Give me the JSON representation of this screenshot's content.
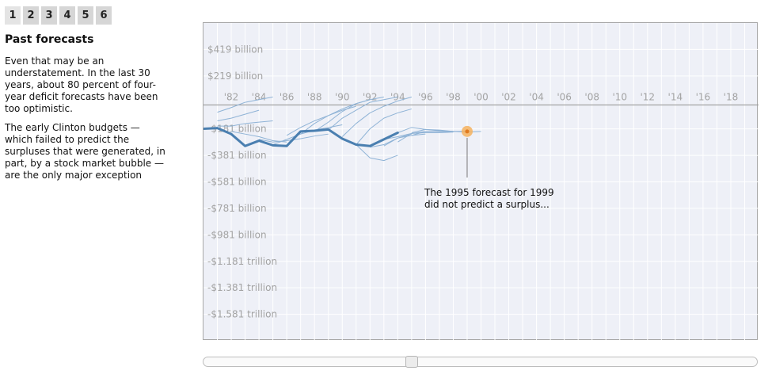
{
  "pager": {
    "pages": [
      "1",
      "2",
      "3",
      "4",
      "5",
      "6"
    ],
    "active": "1"
  },
  "sidebar": {
    "title": "Past forecasts",
    "paragraphs": [
      "Even that may be an understatement. In the last 30 years, about 80 percent of four-year deficit forecasts have been too optimistic.",
      "The early Clinton budgets — which failed to predict the surpluses that were generated, in part, by a stock market bubble — are the only major exception"
    ]
  },
  "annotation": {
    "line1": "The 1995 forecast for 1999",
    "line2": "did not predict a surplus..."
  },
  "slider": {
    "value_year": 1995
  },
  "colors": {
    "background": "#eef0f7",
    "grid": "#ffffff",
    "actual_line": "#4a7fb0",
    "forecast_lines": "#8fb3d6",
    "highlight": "#f5b25e",
    "zero_line": "#9a9a9a"
  },
  "chart_data": {
    "type": "line",
    "title": "",
    "xlabel": "",
    "ylabel": "",
    "x_tick_labels": [
      "'82",
      "'84",
      "'86",
      "'88",
      "'90",
      "'92",
      "'94",
      "'96",
      "'98",
      "'00",
      "'02",
      "'04",
      "'06",
      "'08",
      "'10",
      "'12",
      "'14",
      "'16",
      "'18"
    ],
    "y_tick_labels": [
      "$419 billion",
      "$219 billion",
      "-$181 billion",
      "-$381 billion",
      "-$581 billion",
      "-$781 billion",
      "-$981 billion",
      "-$1.181 trillion",
      "-$1.381 trillion",
      "-$1.581 trillion"
    ],
    "y_tick_values": [
      419,
      219,
      -181,
      -381,
      -581,
      -781,
      -981,
      -1181,
      -1381,
      -1581
    ],
    "xlim": [
      1980,
      2020
    ],
    "ylim": [
      -1781,
      619
    ],
    "units": "billions of dollars",
    "grid": true,
    "actual": {
      "x": [
        1980,
        1981,
        1982,
        1983,
        1984,
        1985,
        1986,
        1987,
        1988,
        1989,
        1990,
        1991,
        1992,
        1993,
        1994
      ],
      "values": [
        -180,
        -175,
        -220,
        -310,
        -270,
        -305,
        -310,
        -200,
        -195,
        -185,
        -255,
        -300,
        -310,
        -260,
        -210
      ]
    },
    "forecasts": [
      {
        "x": [
          1981,
          1982,
          1983,
          1984,
          1985
        ],
        "values": [
          -55,
          -20,
          20,
          40,
          60
        ]
      },
      {
        "x": [
          1981,
          1982,
          1983,
          1984
        ],
        "values": [
          -120,
          -100,
          -70,
          -40
        ]
      },
      {
        "x": [
          1981,
          1982,
          1983,
          1984,
          1985
        ],
        "values": [
          -160,
          -160,
          -140,
          -130,
          -120
        ]
      },
      {
        "x": [
          1982,
          1983,
          1984,
          1985,
          1986
        ],
        "values": [
          -200,
          -220,
          -240,
          -270,
          -280
        ]
      },
      {
        "x": [
          1984,
          1985,
          1986,
          1987,
          1988,
          1989
        ],
        "values": [
          -260,
          -280,
          -270,
          -255,
          -235,
          -220
        ]
      },
      {
        "x": [
          1985,
          1986,
          1987,
          1988,
          1989,
          1990
        ],
        "values": [
          -300,
          -260,
          -220,
          -190,
          -170,
          -150
        ]
      },
      {
        "x": [
          1986,
          1987,
          1988,
          1989,
          1990,
          1991
        ],
        "values": [
          -230,
          -170,
          -120,
          -80,
          -40,
          -10
        ]
      },
      {
        "x": [
          1987,
          1988,
          1989,
          1990,
          1991,
          1992
        ],
        "values": [
          -220,
          -140,
          -80,
          -30,
          10,
          40
        ]
      },
      {
        "x": [
          1988,
          1989,
          1990,
          1991,
          1992,
          1993
        ],
        "values": [
          -200,
          -130,
          -50,
          10,
          40,
          60
        ]
      },
      {
        "x": [
          1989,
          1990,
          1991,
          1992,
          1993,
          1994
        ],
        "values": [
          -190,
          -100,
          -40,
          20,
          40,
          60
        ]
      },
      {
        "x": [
          1990,
          1991,
          1992,
          1993,
          1994,
          1995
        ],
        "values": [
          -240,
          -140,
          -60,
          -10,
          30,
          60
        ]
      },
      {
        "x": [
          1991,
          1992,
          1993,
          1994,
          1995
        ],
        "values": [
          -300,
          -180,
          -100,
          -60,
          -30
        ]
      },
      {
        "x": [
          1991,
          1992,
          1993,
          1994
        ],
        "values": [
          -300,
          -400,
          -420,
          -380
        ]
      },
      {
        "x": [
          1992,
          1993,
          1994,
          1995
        ],
        "values": [
          -320,
          -300,
          -250,
          -220
        ]
      },
      {
        "x": [
          1993,
          1994,
          1995,
          1996
        ],
        "values": [
          -310,
          -250,
          -230,
          -220
        ]
      },
      {
        "x": [
          1993,
          1994,
          1995,
          1996,
          1997,
          1998
        ],
        "values": [
          -260,
          -240,
          -215,
          -200,
          -200,
          -205
        ]
      },
      {
        "x": [
          1994,
          1995,
          1996,
          1997,
          1998
        ],
        "values": [
          -280,
          -215,
          -210,
          -210,
          -205
        ]
      },
      {
        "x": [
          1994,
          1995,
          1996,
          1997,
          1998,
          1999
        ],
        "values": [
          -210,
          -170,
          -185,
          -195,
          -200,
          -200
        ]
      },
      {
        "x": [
          1995,
          1996,
          1997,
          1998,
          1999,
          2000
        ],
        "values": [
          -230,
          -200,
          -200,
          -200,
          -205,
          -200
        ]
      },
      {
        "x": [
          1995,
          1996,
          1997,
          1998,
          1999
        ],
        "values": [
          -210,
          -185,
          -190,
          -200,
          -200
        ]
      }
    ],
    "highlight_point": {
      "x": 1999,
      "value": -200,
      "label": "1995 forecast for 1999"
    }
  }
}
